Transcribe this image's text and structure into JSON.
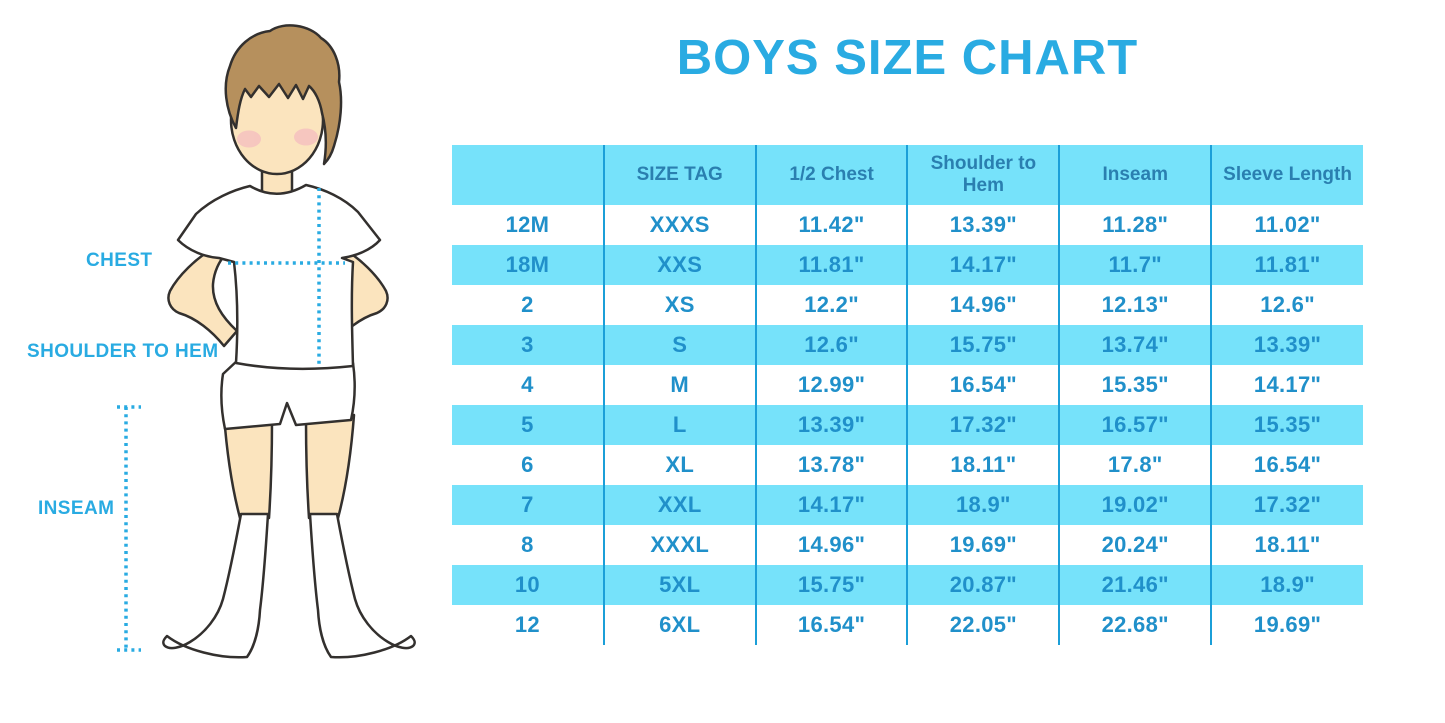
{
  "title": "BOYS SIZE CHART",
  "figure": {
    "description": "outline illustration of a boy in white t-shirt, shorts and knee socks with dotted measurement guides",
    "labels": {
      "chest": "CHEST",
      "shoulder_to_hem": "SHOULDER TO HEM",
      "inseam": "INSEAM"
    }
  },
  "chart_data": {
    "type": "table",
    "title": "BOYS SIZE CHART",
    "columns": [
      "",
      "SIZE TAG",
      "1/2 Chest",
      "Shoulder to Hem",
      "Inseam",
      "Sleeve Length"
    ],
    "rows": [
      [
        "12M",
        "XXXS",
        "11.42\"",
        "13.39\"",
        "11.28\"",
        "11.02\""
      ],
      [
        "18M",
        "XXS",
        "11.81\"",
        "14.17\"",
        "11.7\"",
        "11.81\""
      ],
      [
        "2",
        "XS",
        "12.2\"",
        "14.96\"",
        "12.13\"",
        "12.6\""
      ],
      [
        "3",
        "S",
        "12.6\"",
        "15.75\"",
        "13.74\"",
        "13.39\""
      ],
      [
        "4",
        "M",
        "12.99\"",
        "16.54\"",
        "15.35\"",
        "14.17\""
      ],
      [
        "5",
        "L",
        "13.39\"",
        "17.32\"",
        "16.57\"",
        "15.35\""
      ],
      [
        "6",
        "XL",
        "13.78\"",
        "18.11\"",
        "17.8\"",
        "16.54\""
      ],
      [
        "7",
        "XXL",
        "14.17\"",
        "18.9\"",
        "19.02\"",
        "17.32\""
      ],
      [
        "8",
        "XXXL",
        "14.96\"",
        "19.69\"",
        "20.24\"",
        "18.11\""
      ],
      [
        "10",
        "5XL",
        "15.75\"",
        "20.87\"",
        "21.46\"",
        "18.9\""
      ],
      [
        "12",
        "6XL",
        "16.54\"",
        "22.05\"",
        "22.68\"",
        "19.69\""
      ]
    ],
    "layout": {
      "striped": true,
      "stripe_colors": [
        "#FFFFFF",
        "#76E2FA"
      ],
      "header_background": "#76E2FA",
      "column_dividers": true,
      "outer_border": false
    }
  },
  "colors": {
    "title_text": "#29ABE2",
    "stripe_cyan": "#76E2FA",
    "column_divider": "#1B9FD8",
    "header_text": "#2A7FB0",
    "cell_text": "#2090CA",
    "measure_label": "#29ABE2",
    "dotted_line": "#29ABE2",
    "skin": "#FBE4BE",
    "hair": "#B6905D",
    "outline": "#33302E",
    "blush": "#F2AEC0"
  }
}
